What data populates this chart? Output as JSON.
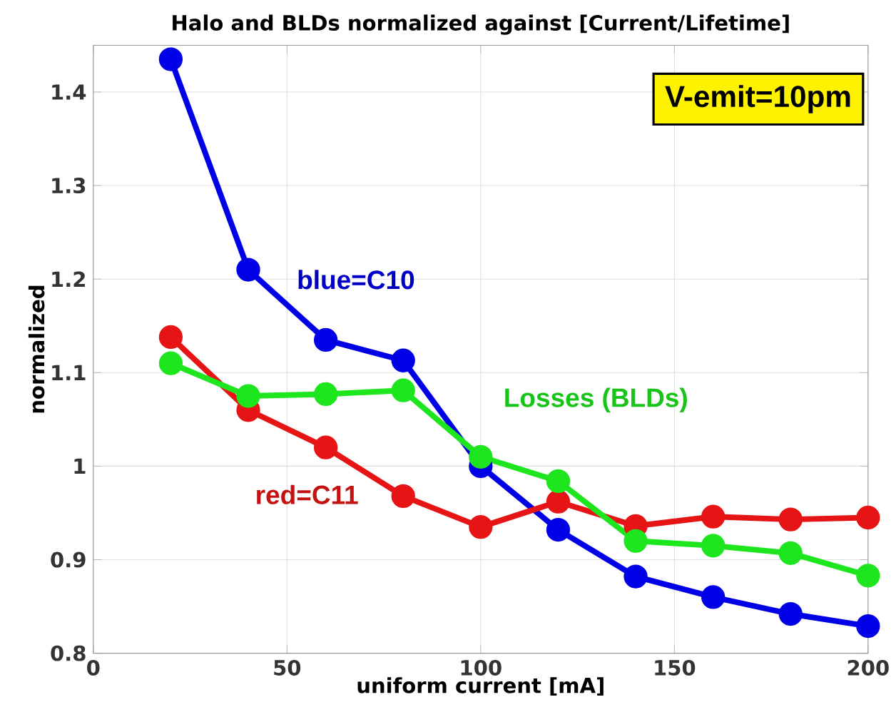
{
  "chart_data": {
    "type": "line",
    "title": "Halo and BLDs normalized against [Current/Lifetime]",
    "xlabel": "uniform current [mA]",
    "ylabel": "normalized",
    "x": [
      20,
      40,
      60,
      80,
      100,
      120,
      140,
      160,
      180,
      200
    ],
    "series": [
      {
        "name": "blue=C10",
        "color": "#0000e6",
        "values": [
          1.435,
          1.21,
          1.135,
          1.113,
          1.0,
          0.932,
          0.882,
          0.86,
          0.842,
          0.829
        ]
      },
      {
        "name": "red=C11",
        "color": "#e61414",
        "values": [
          1.138,
          1.06,
          1.02,
          0.968,
          0.935,
          0.962,
          0.936,
          0.946,
          0.943,
          0.945
        ]
      },
      {
        "name": "Losses (BLDs)",
        "color": "#1ee61e",
        "values": [
          1.11,
          1.075,
          1.077,
          1.081,
          1.01,
          0.984,
          0.92,
          0.915,
          0.907,
          0.883
        ]
      }
    ],
    "annotations": [
      "V-emit=10pm"
    ],
    "xlim": [
      0,
      200
    ],
    "ylim": [
      0.8,
      1.45
    ],
    "xticks": [
      0,
      50,
      100,
      150,
      200
    ],
    "yticks": [
      0.8,
      0.9,
      1,
      1.1,
      1.2,
      1.3,
      1.4
    ],
    "grid": true,
    "marker": "circle",
    "line_style": "solid"
  }
}
